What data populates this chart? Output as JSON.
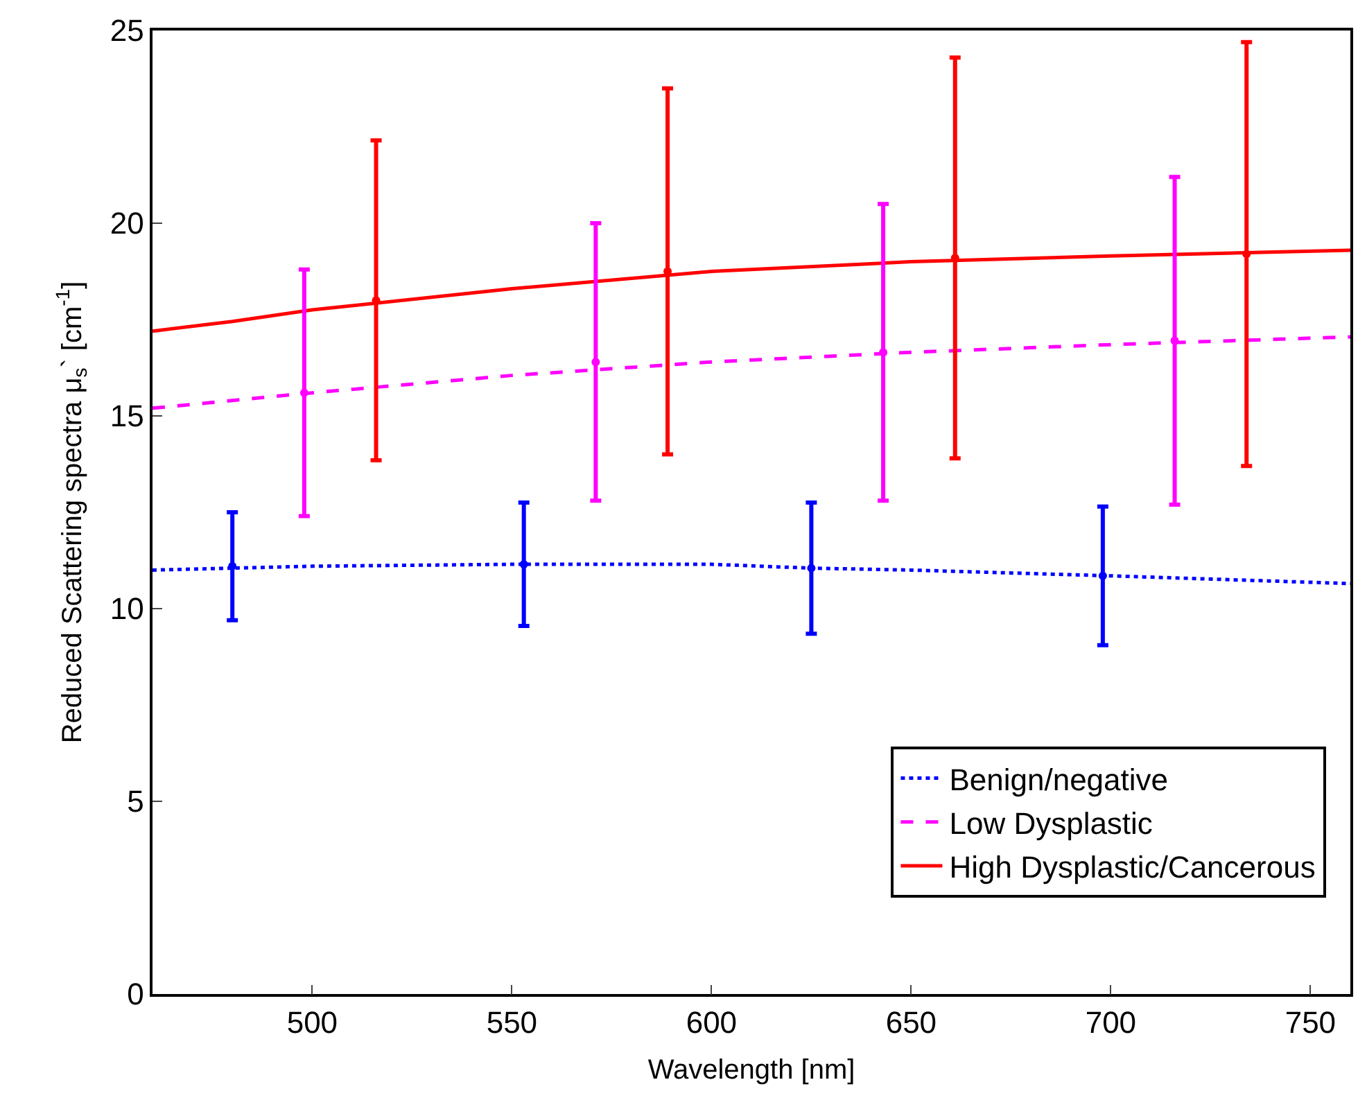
{
  "chart_data": {
    "type": "line",
    "xlabel": "Wavelength [nm]",
    "ylabel": "Reduced Scattering spectra μ$_{s}$` [cm$^{-1}$]",
    "xlim": [
      460,
      760
    ],
    "xticks": [
      500,
      550,
      600,
      650,
      700,
      750
    ],
    "ylim": [
      0,
      25
    ],
    "yticks": [
      0,
      5,
      10,
      15,
      20,
      25
    ],
    "grid": false,
    "legend": "bottom right",
    "marker": "none",
    "series": [
      {
        "name": "Benign/negative",
        "color": "#0000ff",
        "line_style": "dotted",
        "x": [
          460,
          480,
          500,
          550,
          600,
          625,
          650,
          700,
          730,
          760
        ],
        "values": [
          11.0,
          11.05,
          11.1,
          11.15,
          11.15,
          11.05,
          11.0,
          10.85,
          10.75,
          10.65
        ]
      },
      {
        "name": "Low Dysplastic",
        "color": "#ff00ff",
        "line_style": "dashed",
        "x": [
          460,
          500,
          550,
          600,
          650,
          700,
          760
        ],
        "values": [
          15.2,
          15.6,
          16.05,
          16.4,
          16.65,
          16.85,
          17.05
        ]
      },
      {
        "name": "High Dysplastic/Cancerous",
        "color": "#ff0000",
        "line_style": "solid",
        "x": [
          460,
          480,
          500,
          550,
          600,
          650,
          700,
          760
        ],
        "values": [
          17.2,
          17.45,
          17.75,
          18.3,
          18.75,
          19.0,
          19.15,
          19.3
        ]
      },
      {
        "type": "scatter",
        "marker": "circle",
        "color": "#0000ff",
        "x": [
          480,
          553,
          625,
          698
        ],
        "values": [
          11.1,
          11.15,
          11.05,
          10.85
        ],
        "errors": [
          1.4,
          1.6,
          1.7,
          1.8
        ]
      },
      {
        "type": "scatter",
        "marker": "circle",
        "color": "#ff00ff",
        "x": [
          498,
          571,
          643,
          716
        ],
        "values": [
          15.6,
          16.4,
          16.65,
          16.95
        ],
        "errors": [
          3.2,
          3.6,
          3.85,
          4.25
        ]
      },
      {
        "type": "scatter",
        "marker": "circle",
        "color": "#ff0000",
        "x": [
          516,
          589,
          661,
          734
        ],
        "values": [
          18.0,
          18.75,
          19.1,
          19.2
        ],
        "errors": [
          4.15,
          4.75,
          5.2,
          5.5
        ]
      }
    ]
  }
}
